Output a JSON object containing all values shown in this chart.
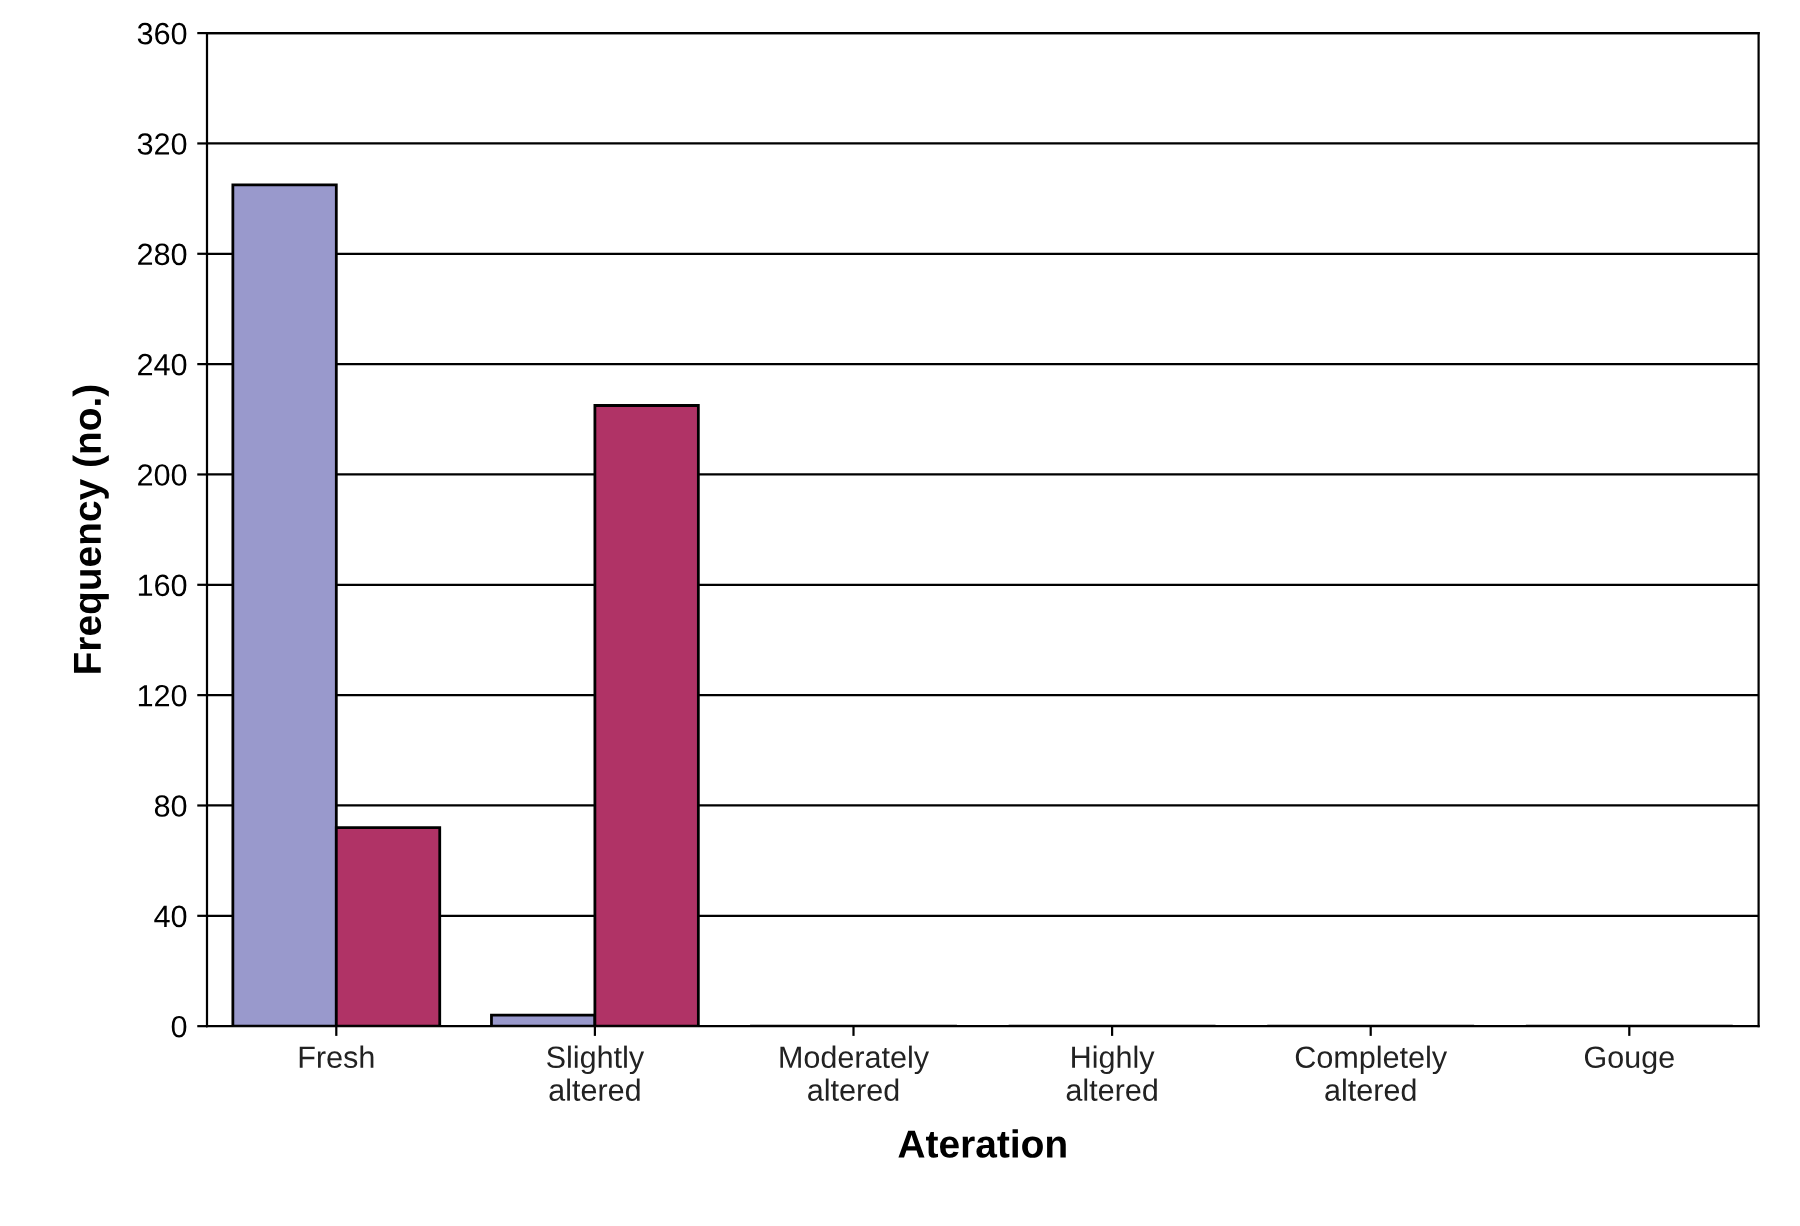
{
  "chart_data": {
    "type": "bar",
    "xlabel": "Ateration",
    "ylabel": "Frequency (no.)",
    "categories": [
      "Fresh",
      "Slightly\naltered",
      "Moderately\naltered",
      "Highly\naltered",
      "Completely\naltered",
      "Gouge"
    ],
    "series": [
      {
        "color": "#9999cc",
        "values": [
          305,
          4,
          0,
          0,
          0,
          0
        ]
      },
      {
        "color": "#b03366",
        "values": [
          72,
          225,
          0,
          0,
          0,
          0
        ]
      }
    ],
    "ylim": [
      0,
      360
    ],
    "yticks": [
      0,
      40,
      80,
      120,
      160,
      200,
      240,
      280,
      320,
      360
    ],
    "grid": "y"
  }
}
